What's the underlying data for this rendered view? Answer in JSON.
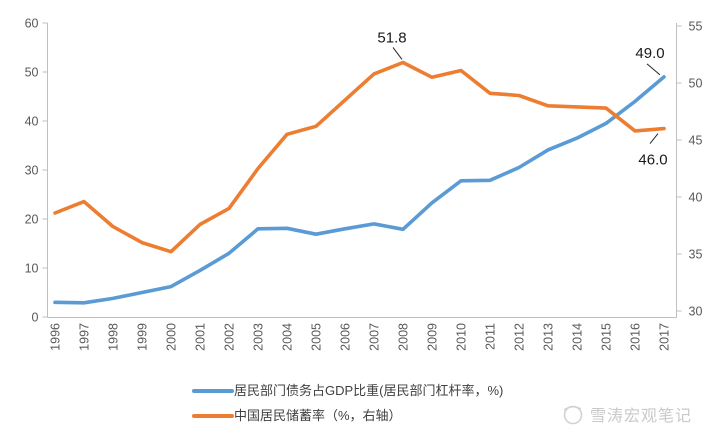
{
  "chart_data": {
    "type": "line",
    "title": "",
    "xlabel": "",
    "ylabel_left": "",
    "ylabel_right": "",
    "grid": false,
    "legend_position": "bottom",
    "x": [
      "1996",
      "1997",
      "1998",
      "1999",
      "2000",
      "2001",
      "2002",
      "2003",
      "2004",
      "2005",
      "2006",
      "2007",
      "2008",
      "2009",
      "2010",
      "2011",
      "2012",
      "2013",
      "2014",
      "2015",
      "2016",
      "2017"
    ],
    "series": [
      {
        "id": "household-leverage",
        "name": "居民部门债务占GDP比重(居民部门杠杆率，%)",
        "axis": "left",
        "color": "#5B9BD5",
        "values": [
          3.0,
          2.9,
          3.8,
          5.0,
          6.2,
          9.5,
          13.0,
          18.0,
          18.1,
          16.9,
          18.0,
          19.0,
          17.9,
          23.3,
          27.8,
          27.9,
          30.5,
          34.1,
          36.5,
          39.5,
          44.0,
          49.0
        ]
      },
      {
        "id": "savings-rate",
        "name": "中国居民储蓄率（%，右轴）",
        "axis": "right",
        "color": "#ED7D31",
        "values": [
          38.6,
          39.6,
          37.4,
          36.0,
          35.2,
          37.6,
          39.0,
          42.5,
          45.5,
          46.2,
          48.5,
          50.8,
          51.8,
          50.5,
          51.1,
          49.1,
          48.9,
          48.0,
          47.9,
          47.8,
          45.8,
          46.0
        ]
      }
    ],
    "left_axis": {
      "min": 0,
      "max": 60,
      "step": 10,
      "tick_labels": [
        "0",
        "10",
        "20",
        "30",
        "40",
        "50",
        "60"
      ]
    },
    "right_axis": {
      "min": 30,
      "max": 55,
      "step": 5,
      "tick_labels": [
        "30",
        "35",
        "40",
        "45",
        "50",
        "55"
      ]
    },
    "annotations": [
      {
        "text": "51.8",
        "series": 1,
        "x": "2008",
        "placement": "above"
      },
      {
        "text": "49.0",
        "series": 0,
        "x": "2017",
        "placement": "above-left"
      },
      {
        "text": "46.0",
        "series": 1,
        "x": "2017",
        "placement": "below-left"
      }
    ],
    "colors": {
      "axis_line": "#BFBFBF",
      "tick_text": "#595959",
      "annotation_text": "#1a1a1a",
      "leader_line": "#262626"
    }
  },
  "legend": {
    "items": [
      {
        "label": "居民部门债务占GDP比重(居民部门杠杆率，%)"
      },
      {
        "label": "中国居民储蓄率（%，右轴）"
      }
    ]
  },
  "watermark": {
    "text": "雪涛宏观笔记"
  }
}
